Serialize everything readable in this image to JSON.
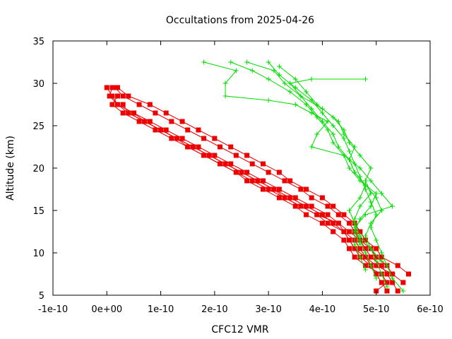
{
  "chart_data": {
    "type": "line",
    "title": "Occultations from 2025-04-26",
    "xlabel": "CFC12 VMR",
    "ylabel": "Altitude (km)",
    "xlim": [
      -1e-10,
      6e-10
    ],
    "ylim": [
      5,
      35
    ],
    "x_ticks": [
      {
        "value": -1e-10,
        "label": "-1e-10"
      },
      {
        "value": 0,
        "label": "0e+00"
      },
      {
        "value": 1e-10,
        "label": "1e-10"
      },
      {
        "value": 2e-10,
        "label": "2e-10"
      },
      {
        "value": 3e-10,
        "label": "3e-10"
      },
      {
        "value": 4e-10,
        "label": "4e-10"
      },
      {
        "value": 5e-10,
        "label": "5e-10"
      },
      {
        "value": 6e-10,
        "label": "6e-10"
      }
    ],
    "y_ticks": [
      {
        "value": 5,
        "label": "5"
      },
      {
        "value": 10,
        "label": "10"
      },
      {
        "value": 15,
        "label": "15"
      },
      {
        "value": 20,
        "label": "20"
      },
      {
        "value": 25,
        "label": "25"
      },
      {
        "value": 30,
        "label": "30"
      },
      {
        "value": 35,
        "label": "35"
      }
    ],
    "grid": false,
    "legend": "none",
    "colors": {
      "red_series": "#ee0000",
      "green_series": "#00dd00"
    },
    "series": [
      {
        "color": "#ee0000",
        "marker": "square",
        "points": [
          [
            5.4e-10,
            5.5
          ],
          [
            5.3e-10,
            6.5
          ],
          [
            5.2e-10,
            7.5
          ],
          [
            5.1e-10,
            8.5
          ],
          [
            4.9e-10,
            9.5
          ],
          [
            4.8e-10,
            10.5
          ],
          [
            4.7e-10,
            11.5
          ],
          [
            4.5e-10,
            12.5
          ],
          [
            4.3e-10,
            13.5
          ],
          [
            4.1e-10,
            14.5
          ],
          [
            3.8e-10,
            15.5
          ],
          [
            3.5e-10,
            16.5
          ],
          [
            3.2e-10,
            17.5
          ],
          [
            2.9e-10,
            18.5
          ],
          [
            2.6e-10,
            19.5
          ],
          [
            2.3e-10,
            20.5
          ],
          [
            2e-10,
            21.5
          ],
          [
            1.7e-10,
            22.5
          ],
          [
            1.4e-10,
            23.5
          ],
          [
            1.1e-10,
            24.5
          ],
          [
            8e-11,
            25.5
          ],
          [
            5e-11,
            26.5
          ],
          [
            2e-11,
            27.5
          ],
          [
            1e-11,
            28.5
          ],
          [
            0.0,
            29.5
          ]
        ]
      },
      {
        "color": "#ee0000",
        "marker": "square",
        "points": [
          [
            5.2e-10,
            5.5
          ],
          [
            5.1e-10,
            6.5
          ],
          [
            5e-10,
            7.5
          ],
          [
            4.9e-10,
            8.5
          ],
          [
            4.8e-10,
            9.5
          ],
          [
            4.6e-10,
            10.5
          ],
          [
            4.5e-10,
            11.5
          ],
          [
            4.4e-10,
            12.5
          ],
          [
            4.2e-10,
            13.5
          ],
          [
            4e-10,
            14.5
          ],
          [
            3.7e-10,
            15.5
          ],
          [
            3.4e-10,
            16.5
          ],
          [
            3.1e-10,
            17.5
          ],
          [
            2.8e-10,
            18.5
          ],
          [
            2.5e-10,
            19.5
          ],
          [
            2.2e-10,
            20.5
          ],
          [
            1.9e-10,
            21.5
          ],
          [
            1.6e-10,
            22.5
          ],
          [
            1.3e-10,
            23.5
          ],
          [
            1e-10,
            24.5
          ],
          [
            7e-11,
            25.5
          ],
          [
            4e-11,
            26.5
          ],
          [
            2e-11,
            27.5
          ],
          [
            5e-12,
            28.5
          ],
          [
            1e-11,
            29.5
          ]
        ]
      },
      {
        "color": "#ee0000",
        "marker": "square",
        "points": [
          [
            5.5e-10,
            6.5
          ],
          [
            5.3e-10,
            7.5
          ],
          [
            5.2e-10,
            8.5
          ],
          [
            5e-10,
            9.5
          ],
          [
            4.9e-10,
            10.5
          ],
          [
            4.7e-10,
            11.5
          ],
          [
            4.6e-10,
            12.5
          ],
          [
            4.5e-10,
            13.5
          ],
          [
            4.3e-10,
            14.5
          ],
          [
            4.1e-10,
            15.5
          ],
          [
            3.8e-10,
            16.5
          ],
          [
            3.6e-10,
            17.5
          ],
          [
            3.3e-10,
            18.5
          ],
          [
            3e-10,
            19.5
          ],
          [
            2.7e-10,
            20.5
          ],
          [
            2.4e-10,
            21.5
          ],
          [
            2.1e-10,
            22.5
          ],
          [
            1.8e-10,
            23.5
          ],
          [
            1.5e-10,
            24.5
          ],
          [
            1.2e-10,
            25.5
          ],
          [
            9e-11,
            26.5
          ],
          [
            6e-11,
            27.5
          ],
          [
            3e-11,
            28.5
          ],
          [
            1.5e-11,
            29.5
          ]
        ]
      },
      {
        "color": "#ee0000",
        "marker": "square",
        "points": [
          [
            5e-10,
            5.5
          ],
          [
            5.2e-10,
            6.5
          ],
          [
            5.1e-10,
            7.5
          ],
          [
            4.8e-10,
            8.5
          ],
          [
            4.6e-10,
            9.5
          ],
          [
            4.5e-10,
            10.5
          ],
          [
            4.4e-10,
            11.5
          ],
          [
            4.2e-10,
            12.5
          ],
          [
            4e-10,
            13.5
          ],
          [
            3.7e-10,
            14.5
          ],
          [
            3.5e-10,
            15.5
          ],
          [
            3.2e-10,
            16.5
          ],
          [
            2.9e-10,
            17.5
          ],
          [
            2.6e-10,
            18.5
          ],
          [
            2.4e-10,
            19.5
          ],
          [
            2.1e-10,
            20.5
          ],
          [
            1.8e-10,
            21.5
          ],
          [
            1.5e-10,
            22.5
          ],
          [
            1.2e-10,
            23.5
          ],
          [
            9e-11,
            24.5
          ],
          [
            6e-11,
            25.5
          ],
          [
            3e-11,
            26.5
          ],
          [
            1e-11,
            27.5
          ],
          [
            2e-11,
            28.5
          ]
        ]
      },
      {
        "color": "#ee0000",
        "marker": "square",
        "points": [
          [
            5.6e-10,
            7.5
          ],
          [
            5.4e-10,
            8.5
          ],
          [
            5.1e-10,
            9.5
          ],
          [
            5e-10,
            10.5
          ],
          [
            4.8e-10,
            11.5
          ],
          [
            4.7e-10,
            12.5
          ],
          [
            4.6e-10,
            13.5
          ],
          [
            4.4e-10,
            14.5
          ],
          [
            4.2e-10,
            15.5
          ],
          [
            4e-10,
            16.5
          ],
          [
            3.7e-10,
            17.5
          ],
          [
            3.4e-10,
            18.5
          ],
          [
            3.2e-10,
            19.5
          ],
          [
            2.9e-10,
            20.5
          ],
          [
            2.6e-10,
            21.5
          ],
          [
            2.3e-10,
            22.5
          ],
          [
            2e-10,
            23.5
          ],
          [
            1.7e-10,
            24.5
          ],
          [
            1.4e-10,
            25.5
          ],
          [
            1.1e-10,
            26.5
          ],
          [
            8e-11,
            27.5
          ],
          [
            4e-11,
            28.5
          ],
          [
            2e-11,
            29.5
          ]
        ]
      },
      {
        "color": "#ee0000",
        "marker": "square",
        "points": [
          [
            4.9e-10,
            8.5
          ],
          [
            4.7e-10,
            9.5
          ],
          [
            4.6e-10,
            10.5
          ],
          [
            4.5e-10,
            11.5
          ],
          [
            4.4e-10,
            12.5
          ],
          [
            4.3e-10,
            13.5
          ],
          [
            3.9e-10,
            14.5
          ],
          [
            3.6e-10,
            15.5
          ],
          [
            3.3e-10,
            16.5
          ],
          [
            3e-10,
            17.5
          ],
          [
            2.7e-10,
            18.5
          ],
          [
            2.4e-10,
            19.5
          ],
          [
            2.1e-10,
            20.5
          ],
          [
            1.8e-10,
            21.5
          ],
          [
            1.5e-10,
            22.5
          ],
          [
            1.3e-10,
            23.5
          ],
          [
            1e-10,
            24.5
          ],
          [
            7e-11,
            25.5
          ],
          [
            4e-11,
            26.5
          ],
          [
            3e-11,
            27.5
          ]
        ]
      },
      {
        "color": "#ee0000",
        "marker": "square",
        "points": [
          [
            5.3e-10,
            7.5
          ],
          [
            5e-10,
            8.5
          ],
          [
            4.8e-10,
            9.5
          ],
          [
            4.7e-10,
            10.5
          ],
          [
            4.6e-10,
            11.5
          ],
          [
            4.4e-10,
            12.5
          ],
          [
            4.1e-10,
            13.5
          ],
          [
            3.9e-10,
            14.5
          ],
          [
            3.6e-10,
            15.5
          ],
          [
            3.3e-10,
            16.5
          ],
          [
            3.1e-10,
            17.5
          ],
          [
            2.8e-10,
            18.5
          ],
          [
            2.5e-10,
            19.5
          ],
          [
            2.2e-10,
            20.5
          ],
          [
            1.9e-10,
            21.5
          ],
          [
            1.6e-10,
            22.5
          ],
          [
            1.3e-10,
            23.5
          ],
          [
            1e-10,
            24.5
          ],
          [
            7e-11,
            25.5
          ],
          [
            5e-11,
            26.5
          ]
        ]
      },
      {
        "color": "#00dd00",
        "marker": "plus",
        "points": [
          [
            5.5e-10,
            5.5
          ],
          [
            5.3e-10,
            7
          ],
          [
            5.2e-10,
            8.5
          ],
          [
            5.1e-10,
            10
          ],
          [
            5e-10,
            11.5
          ],
          [
            4.9e-10,
            13
          ],
          [
            5e-10,
            14.5
          ],
          [
            4.9e-10,
            16
          ],
          [
            4.8e-10,
            17.5
          ],
          [
            4.7e-10,
            19
          ],
          [
            4.6e-10,
            20.5
          ],
          [
            4.5e-10,
            22
          ],
          [
            4.4e-10,
            23.5
          ],
          [
            4.2e-10,
            25
          ],
          [
            4e-10,
            26.5
          ],
          [
            3.8e-10,
            28
          ],
          [
            3.5e-10,
            29.5
          ],
          [
            3.2e-10,
            31
          ],
          [
            3e-10,
            32.5
          ]
        ]
      },
      {
        "color": "#00dd00",
        "marker": "plus",
        "points": [
          [
            5.2e-10,
            6
          ],
          [
            5.1e-10,
            7.5
          ],
          [
            5e-10,
            9
          ],
          [
            4.9e-10,
            10.5
          ],
          [
            4.8e-10,
            12
          ],
          [
            4.9e-10,
            13.5
          ],
          [
            5.1e-10,
            15
          ],
          [
            5e-10,
            16.5
          ],
          [
            4.8e-10,
            18
          ],
          [
            4.6e-10,
            19.5
          ],
          [
            4.5e-10,
            21
          ],
          [
            4.3e-10,
            22.5
          ],
          [
            4.2e-10,
            24
          ],
          [
            4e-10,
            25.5
          ],
          [
            3.8e-10,
            27
          ],
          [
            3.6e-10,
            28.5
          ],
          [
            3.3e-10,
            30
          ],
          [
            3.1e-10,
            31.5
          ],
          [
            2.6e-10,
            32.5
          ]
        ]
      },
      {
        "color": "#00dd00",
        "marker": "plus",
        "points": [
          [
            5e-10,
            7
          ],
          [
            4.9e-10,
            8.5
          ],
          [
            4.8e-10,
            10
          ],
          [
            4.7e-10,
            11.5
          ],
          [
            4.6e-10,
            13
          ],
          [
            4.8e-10,
            14.5
          ],
          [
            5.3e-10,
            15.5
          ],
          [
            5.1e-10,
            17
          ],
          [
            4.9e-10,
            18.5
          ],
          [
            4.7e-10,
            20
          ],
          [
            4.4e-10,
            21.5
          ],
          [
            4.2e-10,
            23
          ],
          [
            4.1e-10,
            24.5
          ],
          [
            3.9e-10,
            26
          ],
          [
            3.7e-10,
            27.5
          ],
          [
            3.4e-10,
            29
          ],
          [
            3e-10,
            30.5
          ],
          [
            2.7e-10,
            31.5
          ],
          [
            2.3e-10,
            32.5
          ]
        ]
      },
      {
        "color": "#00dd00",
        "marker": "plus",
        "points": [
          [
            4.8e-10,
            8
          ],
          [
            4.7e-10,
            9.5
          ],
          [
            4.6e-10,
            11
          ],
          [
            4.6e-10,
            12.5
          ],
          [
            4.7e-10,
            14
          ],
          [
            4.9e-10,
            15.5
          ],
          [
            5e-10,
            17
          ],
          [
            4.7e-10,
            18.5
          ],
          [
            4.5e-10,
            20
          ],
          [
            4.4e-10,
            21.5
          ],
          [
            3.8e-10,
            22.5
          ],
          [
            3.9e-10,
            24
          ],
          [
            4.1e-10,
            25.5
          ],
          [
            3.8e-10,
            26.5
          ],
          [
            3.5e-10,
            27.5
          ],
          [
            3e-10,
            28
          ],
          [
            2.2e-10,
            28.5
          ],
          [
            2.2e-10,
            30
          ],
          [
            2.4e-10,
            31.5
          ],
          [
            1.8e-10,
            32.5
          ]
        ]
      },
      {
        "color": "#00dd00",
        "marker": "plus",
        "points": [
          [
            5.1e-10,
            9
          ],
          [
            4.9e-10,
            10.5
          ],
          [
            4.7e-10,
            12
          ],
          [
            4.6e-10,
            13.5
          ],
          [
            4.5e-10,
            15
          ],
          [
            4.7e-10,
            16.5
          ],
          [
            4.8e-10,
            18
          ],
          [
            4.6e-10,
            19.5
          ],
          [
            4.5e-10,
            21
          ],
          [
            4.6e-10,
            22.5
          ],
          [
            4.4e-10,
            24
          ],
          [
            4.3e-10,
            25.5
          ],
          [
            4e-10,
            27
          ],
          [
            3.6e-10,
            28.5
          ],
          [
            3.4e-10,
            30
          ],
          [
            3.8e-10,
            30.5
          ],
          [
            4.8e-10,
            30.5
          ]
        ]
      },
      {
        "color": "#00dd00",
        "marker": "plus",
        "points": [
          [
            4.7e-10,
            11
          ],
          [
            4.6e-10,
            12.5
          ],
          [
            4.6e-10,
            14
          ],
          [
            4.7e-10,
            15.5
          ],
          [
            4.9e-10,
            17
          ],
          [
            4.8e-10,
            18.5
          ],
          [
            4.9e-10,
            20
          ],
          [
            4.7e-10,
            21.5
          ],
          [
            4.5e-10,
            23
          ],
          [
            4.4e-10,
            24.5
          ],
          [
            4.2e-10,
            26
          ],
          [
            3.9e-10,
            27.5
          ],
          [
            3.7e-10,
            29
          ],
          [
            3.5e-10,
            30.5
          ],
          [
            3.2e-10,
            32
          ]
        ]
      }
    ]
  }
}
